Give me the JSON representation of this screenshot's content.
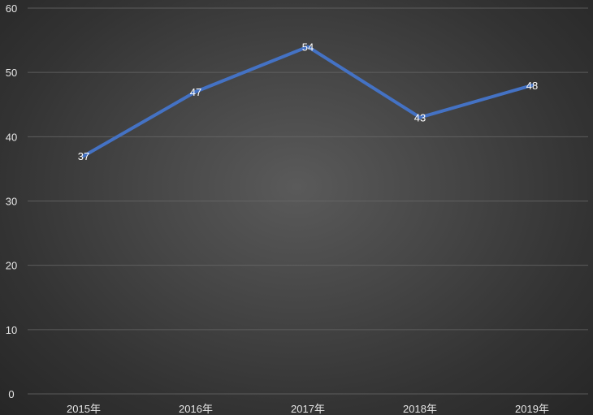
{
  "chart_data": {
    "type": "line",
    "categories": [
      "2015年",
      "2016年",
      "2017年",
      "2018年",
      "2019年"
    ],
    "series": [
      {
        "values": [
          37,
          47,
          54,
          43,
          48
        ],
        "color": "#4472c4"
      }
    ],
    "data_labels": [
      "37",
      "47",
      "54",
      "43",
      "48"
    ],
    "ylim": [
      0,
      60
    ],
    "yticks": [
      0,
      10,
      20,
      30,
      40,
      50,
      60
    ],
    "ytick_labels": [
      "0",
      "10",
      "20",
      "30",
      "40",
      "50",
      "60"
    ],
    "grid": true,
    "legend": "none",
    "title": "",
    "xlabel": "",
    "ylabel": ""
  }
}
